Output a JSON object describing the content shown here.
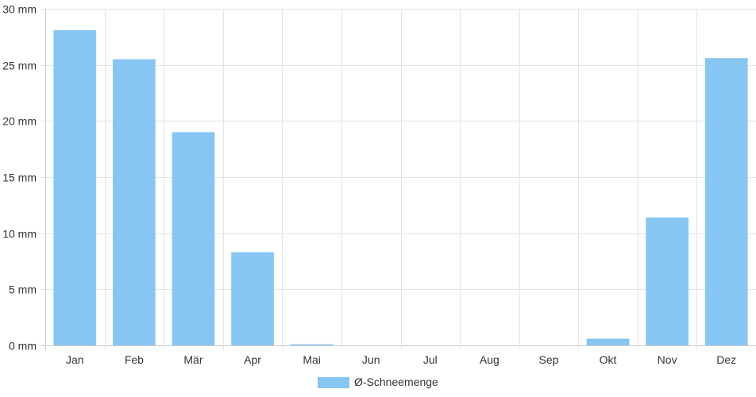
{
  "chart_data": {
    "type": "bar",
    "categories": [
      "Jan",
      "Feb",
      "Mär",
      "Apr",
      "Mai",
      "Jun",
      "Jul",
      "Aug",
      "Sep",
      "Okt",
      "Nov",
      "Dez"
    ],
    "series": [
      {
        "name": "Ø-Schneemenge",
        "values": [
          28.1,
          25.5,
          19.0,
          8.3,
          0.1,
          0,
          0,
          0,
          0,
          0.6,
          11.4,
          25.6
        ],
        "color": "#87c5f2"
      }
    ],
    "y_ticks": [
      "0 mm",
      "5 mm",
      "10 mm",
      "15 mm",
      "20 mm",
      "25 mm",
      "30 mm"
    ],
    "ylim": [
      0,
      30
    ],
    "grid": true,
    "legend_position": "bottom-center"
  }
}
